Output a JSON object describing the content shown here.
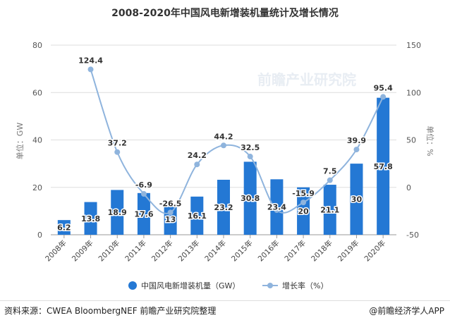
{
  "title": "2008-2020年中国风电新增装机量统计及增长情况",
  "footer": {
    "source": "资料来源：CWEA BloombergNEF 前瞻产业研究院整理",
    "brand": "@前瞻经济学人APP"
  },
  "watermark": "前瞻产业研究院",
  "colors": {
    "bar": "#2478d4",
    "line": "#8fb4dd"
  },
  "chart_data": {
    "type": "bar+line",
    "title": "2008-2020年中国风电新增装机量统计及增长情况",
    "categories": [
      "2008年",
      "2009年",
      "2010年",
      "2011年",
      "2012年",
      "2013年",
      "2014年",
      "2015年",
      "2016年",
      "2017年",
      "2018年",
      "2019年",
      "2020年"
    ],
    "series": [
      {
        "name": "中国风电新增装机量（GW）",
        "type": "bar",
        "axis": "left",
        "values": [
          6.2,
          13.8,
          18.9,
          17.6,
          13,
          16.1,
          23.2,
          30.8,
          23.4,
          20,
          21.1,
          30,
          57.8
        ],
        "labels": [
          "6.2",
          "13.8",
          "18.9",
          "17.6",
          "13",
          "16.1",
          "23.2",
          "30.8",
          "23.4",
          "20",
          "21.1",
          "30",
          "57.8"
        ]
      },
      {
        "name": "增长率（%）",
        "type": "line",
        "axis": "right",
        "values": [
          null,
          124.4,
          37.2,
          -6.9,
          -26.5,
          24.2,
          44.2,
          32.5,
          -24.0,
          -15.9,
          7.5,
          39.9,
          95.4
        ],
        "labels": [
          "",
          "124.4",
          "37.2",
          "-6.9",
          "-26.5",
          "24.2",
          "44.2",
          "32.5",
          "",
          "-15.9",
          "7.5",
          "39.9",
          "95.4"
        ]
      }
    ],
    "ylabel_left": "单位：GW",
    "ylabel_right": "单位：%",
    "ylim_left": [
      0,
      80
    ],
    "yticks_left": [
      "0",
      "20",
      "40",
      "60",
      "80"
    ],
    "ylim_right": [
      -50,
      150
    ],
    "yticks_right": [
      "-50",
      "0",
      "50",
      "100",
      "150"
    ],
    "grid": true,
    "legend": "bottom"
  }
}
